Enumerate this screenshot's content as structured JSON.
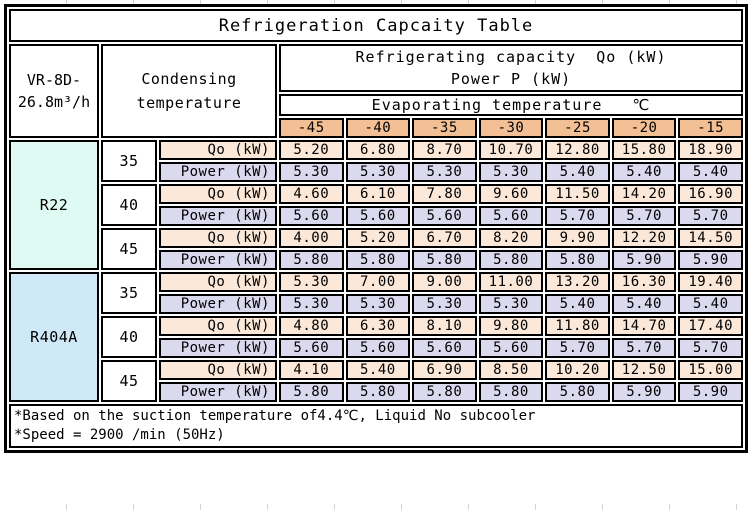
{
  "title": "Refrigeration Capcaity Table",
  "model": "VR-8D-\n26.8m³/h",
  "headers": {
    "condensing": "Condensing\ntemperature",
    "capacity": "Refrigerating capacity  Qo (kW)\nPower P (kW)",
    "evaporating": "Evaporating temperature   ℃"
  },
  "temps": [
    "-45",
    "-40",
    "-35",
    "-30",
    "-25",
    "-20",
    "-15"
  ],
  "row_labels": {
    "qo": "Qo (kW)",
    "power": "Power (kW)"
  },
  "sections": [
    {
      "refrigerant": "R22",
      "groups": [
        {
          "cond": "35",
          "qo": [
            "5.20",
            "6.80",
            "8.70",
            "10.70",
            "12.80",
            "15.80",
            "18.90"
          ],
          "power": [
            "5.30",
            "5.30",
            "5.30",
            "5.30",
            "5.40",
            "5.40",
            "5.40"
          ]
        },
        {
          "cond": "40",
          "qo": [
            "4.60",
            "6.10",
            "7.80",
            "9.60",
            "11.50",
            "14.20",
            "16.90"
          ],
          "power": [
            "5.60",
            "5.60",
            "5.60",
            "5.60",
            "5.70",
            "5.70",
            "5.70"
          ]
        },
        {
          "cond": "45",
          "qo": [
            "4.00",
            "5.20",
            "6.70",
            "8.20",
            "9.90",
            "12.20",
            "14.50"
          ],
          "power": [
            "5.80",
            "5.80",
            "5.80",
            "5.80",
            "5.80",
            "5.90",
            "5.90"
          ]
        }
      ]
    },
    {
      "refrigerant": "R404A",
      "groups": [
        {
          "cond": "35",
          "qo": [
            "5.30",
            "7.00",
            "9.00",
            "11.00",
            "13.20",
            "16.30",
            "19.40"
          ],
          "power": [
            "5.30",
            "5.30",
            "5.30",
            "5.30",
            "5.40",
            "5.40",
            "5.40"
          ]
        },
        {
          "cond": "40",
          "qo": [
            "4.80",
            "6.30",
            "8.10",
            "9.80",
            "11.80",
            "14.70",
            "17.40"
          ],
          "power": [
            "5.60",
            "5.60",
            "5.60",
            "5.60",
            "5.70",
            "5.70",
            "5.70"
          ]
        },
        {
          "cond": "45",
          "qo": [
            "4.10",
            "5.40",
            "6.90",
            "8.50",
            "10.20",
            "12.50",
            "15.00"
          ],
          "power": [
            "5.80",
            "5.80",
            "5.80",
            "5.80",
            "5.80",
            "5.90",
            "5.90"
          ]
        }
      ]
    }
  ],
  "notes": [
    "*Based on the suction temperature of4.4℃, Liquid No subcooler",
    "*Speed = 2900 /min (50Hz)"
  ],
  "colors": {
    "header_orange": "#f2c094",
    "qo_row": "#fbe8d9",
    "power_row": "#dbd9ee",
    "r22_cell": "#dffaf2",
    "r404a_cell": "#cfe9f8",
    "border": "#000000"
  }
}
